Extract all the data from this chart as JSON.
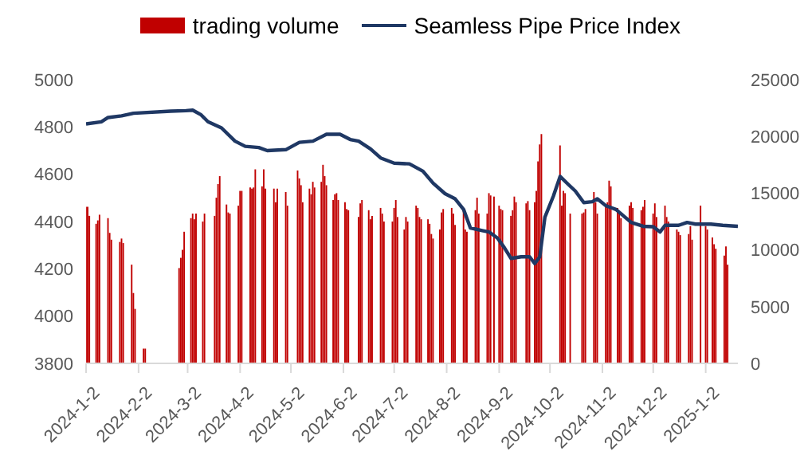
{
  "chart_data": {
    "type": "bar",
    "legend": "top",
    "xlim": [
      "2024-01-02",
      "2025-01-21"
    ],
    "xticks": [
      {
        "value": "2024-01-02",
        "label": "2024-1-2"
      },
      {
        "value": "2024-02-02",
        "label": "2024-2-2"
      },
      {
        "value": "2024-03-02",
        "label": "2024-3-2"
      },
      {
        "value": "2024-04-02",
        "label": "2024-4-2"
      },
      {
        "value": "2024-05-02",
        "label": "2024-5-2"
      },
      {
        "value": "2024-06-02",
        "label": "2024-6-2"
      },
      {
        "value": "2024-07-02",
        "label": "2024-7-2"
      },
      {
        "value": "2024-08-02",
        "label": "2024-8-2"
      },
      {
        "value": "2024-09-02",
        "label": "2024-9-2"
      },
      {
        "value": "2024-10-02",
        "label": "2024-10-2"
      },
      {
        "value": "2024-11-02",
        "label": "2024-11-2"
      },
      {
        "value": "2024-12-02",
        "label": "2024-12-2"
      },
      {
        "value": "2025-01-02",
        "label": "2025-1-2"
      }
    ],
    "ylim": [
      3800,
      5000
    ],
    "yticks": [
      3800,
      4000,
      4200,
      4400,
      4600,
      4800,
      5000
    ],
    "y2lim": [
      0,
      25000
    ],
    "y2ticks": [
      0,
      5000,
      10000,
      15000,
      20000,
      25000
    ],
    "series": [
      {
        "name": "trading volume",
        "axis": "y2",
        "color": "#c00000",
        "x": [
          "2024-01-02",
          "2024-01-03",
          "2024-01-04",
          "2024-01-08",
          "2024-01-09",
          "2024-01-10",
          "2024-01-15",
          "2024-01-16",
          "2024-01-17",
          "2024-01-22",
          "2024-01-23",
          "2024-01-24",
          "2024-01-29",
          "2024-01-30",
          "2024-01-31",
          "2024-02-05",
          "2024-02-06",
          "2024-02-26",
          "2024-02-27",
          "2024-02-28",
          "2024-02-29",
          "2024-03-04",
          "2024-03-05",
          "2024-03-06",
          "2024-03-07",
          "2024-03-11",
          "2024-03-12",
          "2024-03-18",
          "2024-03-19",
          "2024-03-20",
          "2024-03-21",
          "2024-03-25",
          "2024-03-26",
          "2024-03-27",
          "2024-04-01",
          "2024-04-02",
          "2024-04-03",
          "2024-04-08",
          "2024-04-09",
          "2024-04-10",
          "2024-04-11",
          "2024-04-15",
          "2024-04-16",
          "2024-04-17",
          "2024-04-22",
          "2024-04-23",
          "2024-04-24",
          "2024-04-29",
          "2024-04-30",
          "2024-05-06",
          "2024-05-07",
          "2024-05-08",
          "2024-05-09",
          "2024-05-13",
          "2024-05-14",
          "2024-05-15",
          "2024-05-16",
          "2024-05-20",
          "2024-05-21",
          "2024-05-22",
          "2024-05-23",
          "2024-05-27",
          "2024-05-28",
          "2024-05-29",
          "2024-05-30",
          "2024-06-03",
          "2024-06-04",
          "2024-06-05",
          "2024-06-11",
          "2024-06-12",
          "2024-06-13",
          "2024-06-17",
          "2024-06-18",
          "2024-06-19",
          "2024-06-24",
          "2024-06-25",
          "2024-06-26",
          "2024-07-01",
          "2024-07-02",
          "2024-07-03",
          "2024-07-04",
          "2024-07-08",
          "2024-07-09",
          "2024-07-10",
          "2024-07-15",
          "2024-07-16",
          "2024-07-17",
          "2024-07-18",
          "2024-07-22",
          "2024-07-23",
          "2024-07-24",
          "2024-07-25",
          "2024-07-29",
          "2024-07-30",
          "2024-07-31",
          "2024-08-05",
          "2024-08-06",
          "2024-08-07",
          "2024-08-12",
          "2024-08-13",
          "2024-08-14",
          "2024-08-19",
          "2024-08-20",
          "2024-08-21",
          "2024-08-26",
          "2024-08-27",
          "2024-08-28",
          "2024-08-30",
          "2024-09-02",
          "2024-09-03",
          "2024-09-04",
          "2024-09-09",
          "2024-09-10",
          "2024-09-11",
          "2024-09-12",
          "2024-09-18",
          "2024-09-19",
          "2024-09-20",
          "2024-09-23",
          "2024-09-24",
          "2024-09-25",
          "2024-09-26",
          "2024-09-27",
          "2024-10-08",
          "2024-10-09",
          "2024-10-10",
          "2024-10-11",
          "2024-10-14",
          "2024-10-21",
          "2024-10-22",
          "2024-10-23",
          "2024-10-28",
          "2024-10-29",
          "2024-10-30",
          "2024-11-04",
          "2024-11-05",
          "2024-11-06",
          "2024-11-07",
          "2024-11-11",
          "2024-11-12",
          "2024-11-13",
          "2024-11-18",
          "2024-11-19",
          "2024-11-20",
          "2024-11-25",
          "2024-11-26",
          "2024-11-27",
          "2024-12-02",
          "2024-12-03",
          "2024-12-04",
          "2024-12-09",
          "2024-12-10",
          "2024-12-11",
          "2024-12-16",
          "2024-12-17",
          "2024-12-18",
          "2024-12-23",
          "2024-12-24",
          "2024-12-25",
          "2024-12-30",
          "2025-01-02",
          "2025-01-03",
          "2025-01-06",
          "2025-01-07",
          "2025-01-08",
          "2025-01-13",
          "2025-01-14",
          "2025-01-15"
        ],
        "values": [
          13800,
          13800,
          13000,
          12300,
          12600,
          13100,
          12800,
          11500,
          10900,
          10700,
          11000,
          10600,
          8700,
          6200,
          4800,
          1300,
          1300,
          8400,
          9300,
          10000,
          11600,
          12800,
          13200,
          12700,
          13200,
          12500,
          13200,
          13000,
          14600,
          15800,
          16500,
          14000,
          13300,
          13200,
          13900,
          15200,
          15200,
          15500,
          15400,
          15500,
          17100,
          15600,
          17100,
          15400,
          15400,
          14200,
          15400,
          15100,
          13900,
          17000,
          16300,
          15700,
          14200,
          15400,
          14900,
          16000,
          15500,
          16000,
          17500,
          16500,
          15700,
          14400,
          14900,
          15000,
          14400,
          14200,
          13600,
          13500,
          12900,
          14100,
          14400,
          13500,
          12700,
          13000,
          13700,
          13200,
          12500,
          12500,
          13700,
          14400,
          12900,
          11800,
          12900,
          12500,
          13900,
          13700,
          12900,
          12700,
          12700,
          12300,
          11400,
          11000,
          11800,
          13300,
          13600,
          13700,
          13200,
          12200,
          13500,
          11800,
          11600,
          13500,
          14600,
          13200,
          13200,
          15000,
          14800,
          14700,
          13900,
          13600,
          13500,
          13000,
          13500,
          14700,
          14200,
          14100,
          14300,
          13500,
          14200,
          15200,
          17800,
          19300,
          20200,
          19200,
          13900,
          15200,
          15000,
          13200,
          13200,
          13300,
          13600,
          15100,
          14200,
          13200,
          13900,
          14200,
          16100,
          15600,
          13700,
          13200,
          12800,
          13900,
          14200,
          13700,
          13500,
          13800,
          14400,
          13200,
          14100,
          12900,
          13900,
          12900,
          12500,
          11800,
          11600,
          11300,
          11400,
          12100,
          10900,
          13900,
          12100,
          11800,
          11100,
          10500,
          10100,
          9500,
          10300,
          8700
        ]
      },
      {
        "name": "Seamless Pipe Price Index",
        "type": "line",
        "color": "#1f3864",
        "x": [
          "2024-01-02",
          "2024-01-11",
          "2024-01-15",
          "2024-01-23",
          "2024-01-30",
          "2024-02-21",
          "2024-03-01",
          "2024-03-05",
          "2024-03-10",
          "2024-03-14",
          "2024-03-22",
          "2024-03-30",
          "2024-04-05",
          "2024-04-13",
          "2024-04-18",
          "2024-04-29",
          "2024-05-07",
          "2024-05-15",
          "2024-05-18",
          "2024-05-23",
          "2024-05-31",
          "2024-06-06",
          "2024-06-11",
          "2024-06-18",
          "2024-06-24",
          "2024-07-02",
          "2024-07-11",
          "2024-07-19",
          "2024-07-25",
          "2024-08-01",
          "2024-08-07",
          "2024-08-12",
          "2024-08-16",
          "2024-08-23",
          "2024-08-27",
          "2024-09-01",
          "2024-09-05",
          "2024-09-09",
          "2024-09-15",
          "2024-09-20",
          "2024-09-23",
          "2024-09-26",
          "2024-09-29",
          "2024-10-04",
          "2024-10-08",
          "2024-10-13",
          "2024-10-17",
          "2024-10-22",
          "2024-10-27",
          "2024-10-30",
          "2024-11-04",
          "2024-11-10",
          "2024-11-19",
          "2024-11-26",
          "2024-12-02",
          "2024-12-06",
          "2024-12-09",
          "2024-12-17",
          "2024-12-22",
          "2024-12-27",
          "2025-01-05",
          "2025-01-12",
          "2025-01-21"
        ],
        "values": [
          4813,
          4822,
          4840,
          4847,
          4858,
          4867,
          4869,
          4871,
          4851,
          4822,
          4796,
          4740,
          4718,
          4713,
          4700,
          4704,
          4735,
          4740,
          4751,
          4769,
          4769,
          4747,
          4740,
          4707,
          4669,
          4647,
          4644,
          4613,
          4562,
          4518,
          4496,
          4451,
          4373,
          4362,
          4356,
          4330,
          4290,
          4244,
          4251,
          4251,
          4222,
          4251,
          4418,
          4507,
          4591,
          4556,
          4529,
          4480,
          4484,
          4496,
          4467,
          4451,
          4396,
          4380,
          4378,
          4356,
          4384,
          4384,
          4396,
          4389,
          4389,
          4384,
          4380
        ]
      }
    ]
  }
}
